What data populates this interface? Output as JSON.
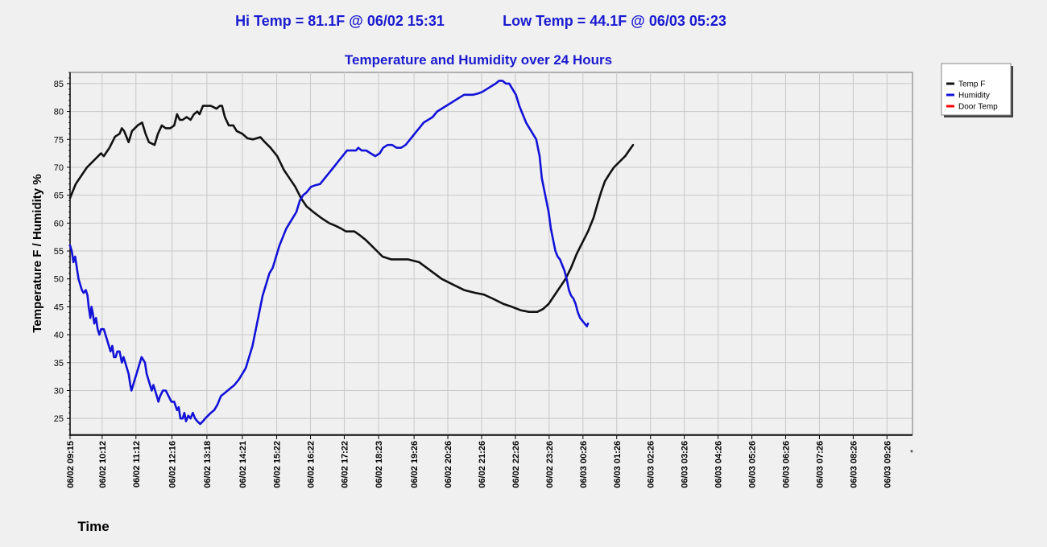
{
  "header": {
    "hi_temp": "Hi Temp = 81.1F @ 06/02 15:31",
    "low_temp": "Low Temp = 44.1F @ 06/03 05:23"
  },
  "corner_mark": "*",
  "colors": {
    "temp": "#111111",
    "humidity": "#1212d8",
    "door": "#ff0000",
    "title": "#1a1ad0",
    "background": "#f0f0f0"
  },
  "chart_data": {
    "type": "line",
    "title": "Temperature and Humidity over 24 Hours",
    "xlabel": "Time",
    "ylabel": "Temperature  F  /  Humidity %",
    "ylim": [
      22,
      87
    ],
    "xlim": [
      0,
      1462
    ],
    "yticks": [
      25,
      30,
      35,
      40,
      45,
      50,
      55,
      60,
      65,
      70,
      75,
      80,
      85
    ],
    "xticks": [
      {
        "m": 0,
        "label": "06/02 09:15"
      },
      {
        "m": 57,
        "label": "06/02 10:12"
      },
      {
        "m": 117,
        "label": "06/02 11:12"
      },
      {
        "m": 181,
        "label": "06/02 12:16"
      },
      {
        "m": 243,
        "label": "06/02 13:18"
      },
      {
        "m": 306,
        "label": "06/02 14:21"
      },
      {
        "m": 367,
        "label": "06/02 15:22"
      },
      {
        "m": 427,
        "label": "06/02 16:22"
      },
      {
        "m": 487,
        "label": "06/02 17:22"
      },
      {
        "m": 548,
        "label": "06/02 18:23"
      },
      {
        "m": 611,
        "label": "06/02 19:26"
      },
      {
        "m": 671,
        "label": "06/02 20:26"
      },
      {
        "m": 731,
        "label": "06/02 21:26"
      },
      {
        "m": 791,
        "label": "06/02 22:26"
      },
      {
        "m": 851,
        "label": "06/02 23:26"
      },
      {
        "m": 911,
        "label": "06/03 00:26"
      },
      {
        "m": 971,
        "label": "06/03 01:26"
      },
      {
        "m": 1031,
        "label": "06/03 02:26"
      },
      {
        "m": 1091,
        "label": "06/03 03:26"
      },
      {
        "m": 1151,
        "label": "06/03 04:26"
      },
      {
        "m": 1211,
        "label": "06/03 05:26"
      },
      {
        "m": 1271,
        "label": "06/03 06:26"
      },
      {
        "m": 1331,
        "label": "06/03 07:26"
      },
      {
        "m": 1391,
        "label": "06/03 08:26"
      },
      {
        "m": 1451,
        "label": "06/03 09:26"
      }
    ],
    "grid": true,
    "legend_position": "top-right",
    "series": [
      {
        "name": "Temp F",
        "color": "#111111",
        "points": [
          [
            0,
            64.5
          ],
          [
            10,
            67
          ],
          [
            20,
            68.5
          ],
          [
            30,
            70
          ],
          [
            38,
            70.8
          ],
          [
            45,
            71.5
          ],
          [
            55,
            72.5
          ],
          [
            60,
            72
          ],
          [
            70,
            73.5
          ],
          [
            80,
            75.5
          ],
          [
            88,
            76
          ],
          [
            92,
            77
          ],
          [
            96,
            76.5
          ],
          [
            104,
            74.5
          ],
          [
            110,
            76.5
          ],
          [
            120,
            77.5
          ],
          [
            128,
            78
          ],
          [
            134,
            76
          ],
          [
            140,
            74.5
          ],
          [
            150,
            74
          ],
          [
            156,
            76
          ],
          [
            163,
            77.5
          ],
          [
            170,
            77
          ],
          [
            178,
            77
          ],
          [
            185,
            77.5
          ],
          [
            190,
            79.5
          ],
          [
            195,
            78.5
          ],
          [
            200,
            78.5
          ],
          [
            207,
            79
          ],
          [
            214,
            78.5
          ],
          [
            220,
            79.5
          ],
          [
            226,
            80
          ],
          [
            230,
            79.5
          ],
          [
            236,
            81
          ],
          [
            250,
            81
          ],
          [
            260,
            80.5
          ],
          [
            266,
            81
          ],
          [
            270,
            81
          ],
          [
            275,
            79
          ],
          [
            282,
            77.5
          ],
          [
            290,
            77.5
          ],
          [
            296,
            76.5
          ],
          [
            306,
            76
          ],
          [
            315,
            75.2
          ],
          [
            325,
            75
          ],
          [
            338,
            75.4
          ],
          [
            346,
            74.5
          ],
          [
            356,
            73.5
          ],
          [
            368,
            72
          ],
          [
            380,
            69.5
          ],
          [
            390,
            68
          ],
          [
            400,
            66.5
          ],
          [
            410,
            64.5
          ],
          [
            420,
            63
          ],
          [
            432,
            62
          ],
          [
            445,
            61
          ],
          [
            460,
            60
          ],
          [
            472,
            59.5
          ],
          [
            482,
            59
          ],
          [
            490,
            58.5
          ],
          [
            505,
            58.5
          ],
          [
            515,
            57.8
          ],
          [
            525,
            57
          ],
          [
            535,
            56
          ],
          [
            545,
            55
          ],
          [
            555,
            54
          ],
          [
            570,
            53.5
          ],
          [
            590,
            53.5
          ],
          [
            600,
            53.5
          ],
          [
            620,
            53
          ],
          [
            640,
            51.5
          ],
          [
            660,
            50
          ],
          [
            680,
            49
          ],
          [
            700,
            48
          ],
          [
            720,
            47.5
          ],
          [
            735,
            47.2
          ],
          [
            750,
            46.5
          ],
          [
            770,
            45.5
          ],
          [
            785,
            45
          ],
          [
            800,
            44.4
          ],
          [
            815,
            44.1
          ],
          [
            830,
            44.1
          ],
          [
            840,
            44.6
          ],
          [
            850,
            45.5
          ],
          [
            860,
            47
          ],
          [
            870,
            48.5
          ],
          [
            880,
            50
          ],
          [
            890,
            52
          ],
          [
            900,
            54.5
          ],
          [
            910,
            56.5
          ],
          [
            920,
            58.5
          ],
          [
            930,
            61
          ],
          [
            937,
            63.5
          ],
          [
            943,
            65.5
          ],
          [
            950,
            67.5
          ],
          [
            958,
            68.8
          ],
          [
            966,
            70
          ],
          [
            976,
            71
          ],
          [
            986,
            72
          ],
          [
            993,
            73
          ],
          [
            1000,
            74
          ]
        ]
      },
      {
        "name": "Humidity",
        "color": "#1212d8",
        "points": [
          [
            0,
            56
          ],
          [
            3,
            55
          ],
          [
            6,
            53
          ],
          [
            9,
            54
          ],
          [
            12,
            52
          ],
          [
            15,
            50
          ],
          [
            18,
            49
          ],
          [
            21,
            48
          ],
          [
            24,
            47.5
          ],
          [
            28,
            48
          ],
          [
            31,
            47
          ],
          [
            33,
            45
          ],
          [
            36,
            43
          ],
          [
            38,
            45
          ],
          [
            40,
            44
          ],
          [
            43,
            42
          ],
          [
            46,
            43
          ],
          [
            49,
            41
          ],
          [
            52,
            40
          ],
          [
            55,
            41
          ],
          [
            60,
            41
          ],
          [
            63,
            40
          ],
          [
            66,
            39
          ],
          [
            69,
            38
          ],
          [
            72,
            37
          ],
          [
            75,
            38
          ],
          [
            78,
            36
          ],
          [
            81,
            36
          ],
          [
            84,
            37
          ],
          [
            88,
            37
          ],
          [
            92,
            35
          ],
          [
            95,
            36
          ],
          [
            98,
            35
          ],
          [
            101,
            34
          ],
          [
            104,
            33
          ],
          [
            107,
            31
          ],
          [
            109,
            30
          ],
          [
            112,
            31
          ],
          [
            115,
            32
          ],
          [
            118,
            33
          ],
          [
            121,
            34
          ],
          [
            124,
            35
          ],
          [
            127,
            36
          ],
          [
            130,
            35.5
          ],
          [
            133,
            35
          ],
          [
            136,
            33
          ],
          [
            139,
            32
          ],
          [
            142,
            31
          ],
          [
            145,
            30
          ],
          [
            148,
            31
          ],
          [
            151,
            30
          ],
          [
            154,
            29
          ],
          [
            157,
            28
          ],
          [
            160,
            29
          ],
          [
            165,
            30
          ],
          [
            170,
            30
          ],
          [
            175,
            29
          ],
          [
            180,
            28
          ],
          [
            185,
            28
          ],
          [
            190,
            26.5
          ],
          [
            193,
            27
          ],
          [
            196,
            25
          ],
          [
            200,
            25
          ],
          [
            203,
            26
          ],
          [
            206,
            24.5
          ],
          [
            210,
            25.5
          ],
          [
            214,
            25
          ],
          [
            218,
            26
          ],
          [
            222,
            25
          ],
          [
            226,
            24.5
          ],
          [
            231,
            24
          ],
          [
            236,
            24.5
          ],
          [
            240,
            25
          ],
          [
            245,
            25.5
          ],
          [
            250,
            26
          ],
          [
            256,
            26.5
          ],
          [
            262,
            27.5
          ],
          [
            268,
            29
          ],
          [
            274,
            29.5
          ],
          [
            280,
            30
          ],
          [
            286,
            30.5
          ],
          [
            292,
            31
          ],
          [
            300,
            32
          ],
          [
            306,
            33
          ],
          [
            312,
            34
          ],
          [
            318,
            36
          ],
          [
            324,
            38
          ],
          [
            330,
            41
          ],
          [
            336,
            44
          ],
          [
            342,
            47
          ],
          [
            348,
            49
          ],
          [
            354,
            51
          ],
          [
            360,
            52
          ],
          [
            366,
            54
          ],
          [
            372,
            56
          ],
          [
            378,
            57.5
          ],
          [
            384,
            59
          ],
          [
            390,
            60
          ],
          [
            396,
            61
          ],
          [
            402,
            62
          ],
          [
            408,
            64
          ],
          [
            414,
            65
          ],
          [
            420,
            65.5
          ],
          [
            428,
            66.5
          ],
          [
            436,
            66.8
          ],
          [
            444,
            67
          ],
          [
            452,
            68
          ],
          [
            460,
            69
          ],
          [
            468,
            70
          ],
          [
            476,
            71
          ],
          [
            484,
            72
          ],
          [
            492,
            73
          ],
          [
            500,
            73
          ],
          [
            508,
            73
          ],
          [
            512,
            73.5
          ],
          [
            518,
            73
          ],
          [
            526,
            73
          ],
          [
            534,
            72.5
          ],
          [
            542,
            72
          ],
          [
            550,
            72.5
          ],
          [
            556,
            73.5
          ],
          [
            564,
            74
          ],
          [
            572,
            74
          ],
          [
            580,
            73.5
          ],
          [
            588,
            73.5
          ],
          [
            596,
            74
          ],
          [
            604,
            75
          ],
          [
            612,
            76
          ],
          [
            620,
            77
          ],
          [
            628,
            78
          ],
          [
            636,
            78.5
          ],
          [
            644,
            79
          ],
          [
            652,
            80
          ],
          [
            660,
            80.5
          ],
          [
            668,
            81
          ],
          [
            676,
            81.5
          ],
          [
            684,
            82
          ],
          [
            692,
            82.5
          ],
          [
            700,
            83
          ],
          [
            708,
            83
          ],
          [
            716,
            83
          ],
          [
            724,
            83.2
          ],
          [
            732,
            83.5
          ],
          [
            740,
            84
          ],
          [
            748,
            84.5
          ],
          [
            756,
            85
          ],
          [
            762,
            85.5
          ],
          [
            768,
            85.5
          ],
          [
            774,
            85
          ],
          [
            780,
            85
          ],
          [
            786,
            84
          ],
          [
            792,
            83
          ],
          [
            798,
            81
          ],
          [
            804,
            79.5
          ],
          [
            810,
            78
          ],
          [
            816,
            77
          ],
          [
            822,
            76
          ],
          [
            828,
            75
          ],
          [
            834,
            72
          ],
          [
            838,
            68
          ],
          [
            842,
            66
          ],
          [
            846,
            64
          ],
          [
            850,
            62
          ],
          [
            854,
            59
          ],
          [
            858,
            57
          ],
          [
            862,
            55
          ],
          [
            866,
            54
          ],
          [
            870,
            53.5
          ],
          [
            874,
            52.5
          ],
          [
            878,
            51.5
          ],
          [
            882,
            50
          ],
          [
            886,
            48
          ],
          [
            890,
            47
          ],
          [
            894,
            46.5
          ],
          [
            898,
            45.5
          ],
          [
            902,
            44
          ],
          [
            906,
            43
          ],
          [
            910,
            42.5
          ],
          [
            914,
            42
          ],
          [
            918,
            41.5
          ],
          [
            920,
            42
          ]
        ]
      },
      {
        "name": "Door Temp",
        "color": "#ff0000",
        "points": []
      }
    ]
  }
}
